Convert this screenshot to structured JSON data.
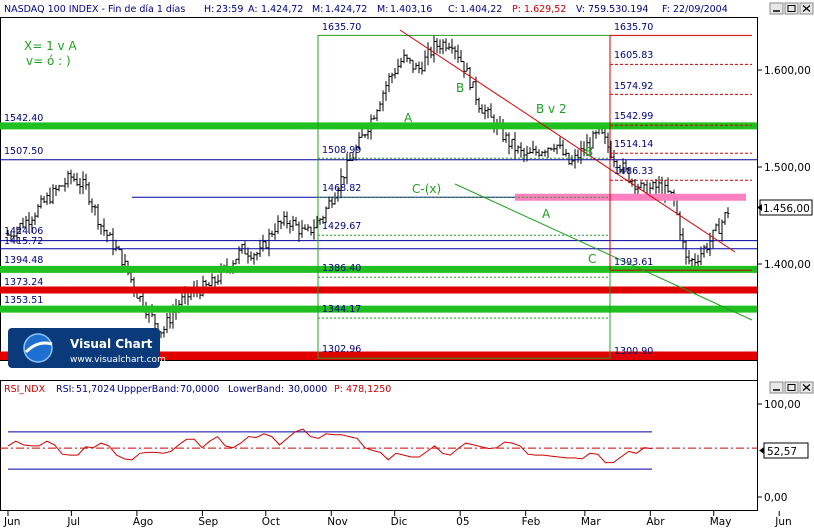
{
  "header": {
    "title": "NASDAQ 100 INDEX - Fin de día 1 días",
    "h_label": "H:",
    "h_value": "23:59",
    "a_label": "A:",
    "a_value": "1.424,72",
    "m_label": "M:",
    "m_value": "1.424,72",
    "mn_label": "M:",
    "mn_value": "1.403,16",
    "c_label": "C:",
    "c_value": "1.404,22",
    "p_label": "P:",
    "p_value": "1.629,52",
    "v_label": "V:",
    "v_value": "759.530.194",
    "f_label": "F:",
    "f_value": "22/09/2004"
  },
  "annotations": {
    "note1": "X= 1 v A",
    "note2": "v= ó : )",
    "wave_b_top": "B",
    "wave_a_left": "A",
    "wave_bv2": "B v 2",
    "wave_b_right": "B",
    "wave_cx": "C-(x)",
    "wave_a_mid": "A",
    "wave_c": "C"
  },
  "levels_left": [
    "1542.40",
    "1507.50",
    "1424.06",
    "1415.72",
    "1394.48",
    "1373.24",
    "1353.51"
  ],
  "fib_mid": [
    "1635.70",
    "1508.99",
    "1468.82",
    "1429.67",
    "1386.40",
    "1344.17",
    "1302.96"
  ],
  "fib_right": [
    "1635.70",
    "1605.83",
    "1574.92",
    "1542.99",
    "1514.14",
    "1486.33",
    "1393.61",
    "1300.90"
  ],
  "price_axis": {
    "ticks": [
      "1.600,00",
      "1.500,00",
      "1.400,00"
    ],
    "current": "1.456,00"
  },
  "logo": {
    "name": "Visual Chart",
    "url": "www.visualchart.com"
  },
  "rsi": {
    "header_name": "RSI_NDX",
    "header_rsi_label": "RSI:",
    "header_rsi": "51,7024",
    "header_upper_label": "UppperBand:",
    "header_upper": "70,0000",
    "header_lower_label": "LowerBand:",
    "header_lower": "30,0000",
    "header_p_label": "P:",
    "header_p": "478,1250",
    "axis_ticks": [
      "100,00",
      "0,00"
    ],
    "current": "52,57"
  },
  "x_axis": {
    "months": [
      "Jun",
      "Jul",
      "Ago",
      "Sep",
      "Oct",
      "Nov",
      "Dic",
      "05",
      "Feb",
      "Mar",
      "Abr",
      "May",
      "Jun"
    ]
  },
  "colors": {
    "background": "#ffffff",
    "bars": "#000000",
    "price_line_blue": "#0000a0",
    "green_level": "#20c020",
    "red_level": "#e00000",
    "pink_zone": "#ff80c0",
    "fib_green": "#20a020",
    "fib_red": "#d00000",
    "header_label": "#000080",
    "header_value_red": "#d00000"
  },
  "chart_data": {
    "type": "ohlc",
    "title": "NASDAQ 100 INDEX - Fin de día 1 días",
    "y_axis_range": [
      1300,
      1660
    ],
    "x_range": [
      "2004-06",
      "2005-06"
    ],
    "close_path": [
      [
        "2004-06-01",
        1430
      ],
      [
        "2004-06-10",
        1445
      ],
      [
        "2004-06-20",
        1468
      ],
      [
        "2004-07-01",
        1490
      ],
      [
        "2004-07-08",
        1478
      ],
      [
        "2004-07-15",
        1440
      ],
      [
        "2004-07-25",
        1405
      ],
      [
        "2004-08-01",
        1370
      ],
      [
        "2004-08-08",
        1345
      ],
      [
        "2004-08-13",
        1330
      ],
      [
        "2004-08-20",
        1358
      ],
      [
        "2004-08-28",
        1372
      ],
      [
        "2004-09-05",
        1378
      ],
      [
        "2004-09-12",
        1395
      ],
      [
        "2004-09-20",
        1415
      ],
      [
        "2004-09-28",
        1410
      ],
      [
        "2004-10-05",
        1438
      ],
      [
        "2004-10-12",
        1445
      ],
      [
        "2004-10-20",
        1430
      ],
      [
        "2004-10-28",
        1450
      ],
      [
        "2004-11-05",
        1485
      ],
      [
        "2004-11-12",
        1515
      ],
      [
        "2004-11-20",
        1550
      ],
      [
        "2004-11-28",
        1590
      ],
      [
        "2004-12-05",
        1612
      ],
      [
        "2004-12-12",
        1600
      ],
      [
        "2004-12-20",
        1625
      ],
      [
        "2004-12-28",
        1630
      ],
      [
        "2005-01-03",
        1603
      ],
      [
        "2005-01-10",
        1565
      ],
      [
        "2005-01-17",
        1545
      ],
      [
        "2005-01-24",
        1525
      ],
      [
        "2005-02-01",
        1510
      ],
      [
        "2005-02-08",
        1518
      ],
      [
        "2005-02-15",
        1525
      ],
      [
        "2005-02-22",
        1502
      ],
      [
        "2005-03-01",
        1520
      ],
      [
        "2005-03-08",
        1535
      ],
      [
        "2005-03-15",
        1510
      ],
      [
        "2005-03-22",
        1490
      ],
      [
        "2005-03-29",
        1475
      ],
      [
        "2005-04-05",
        1480
      ],
      [
        "2005-04-12",
        1468
      ],
      [
        "2005-04-18",
        1403
      ],
      [
        "2005-04-22",
        1404
      ],
      [
        "2005-04-28",
        1420
      ],
      [
        "2005-05-04",
        1440
      ],
      [
        "2005-05-08",
        1456
      ]
    ],
    "horizontal_levels": [
      {
        "value": 1542.4,
        "color": "green"
      },
      {
        "value": 1507.5,
        "color": "blue"
      },
      {
        "value": 1468.82,
        "color": "pink"
      },
      {
        "value": 1424.06,
        "color": "blue"
      },
      {
        "value": 1415.72,
        "color": "blue"
      },
      {
        "value": 1394.48,
        "color": "green"
      },
      {
        "value": 1373.24,
        "color": "red"
      },
      {
        "value": 1353.51,
        "color": "green"
      },
      {
        "value": 1300.0,
        "color": "red"
      }
    ],
    "fibonacci_mid": [
      1635.7,
      1508.99,
      1468.82,
      1429.67,
      1386.4,
      1344.17,
      1302.96
    ],
    "fibonacci_right": [
      1635.7,
      1605.83,
      1574.92,
      1542.99,
      1514.14,
      1486.33,
      1393.61,
      1300.9
    ],
    "last_price": 1456.0,
    "rsi": {
      "upper_band": 70,
      "lower_band": 30,
      "last": 52.57,
      "y_range": [
        0,
        100
      ],
      "values": [
        58,
        61,
        55,
        52,
        57,
        60,
        54,
        49,
        46,
        44,
        51,
        55,
        58,
        53,
        48,
        42,
        39,
        44,
        50,
        48,
        45,
        52,
        57,
        61,
        59,
        55,
        60,
        63,
        58,
        54,
        57,
        62,
        66,
        68,
        63,
        59,
        64,
        69,
        70,
        67,
        63,
        66,
        70,
        68,
        64,
        60,
        55,
        50,
        46,
        43,
        48,
        44,
        40,
        45,
        49,
        53,
        50,
        46,
        51,
        55,
        58,
        54,
        50,
        56,
        60,
        57,
        52,
        48,
        45,
        43,
        47,
        44,
        41,
        39,
        43,
        47,
        44,
        40,
        38,
        42,
        46,
        49,
        53,
        50
      ]
    }
  }
}
